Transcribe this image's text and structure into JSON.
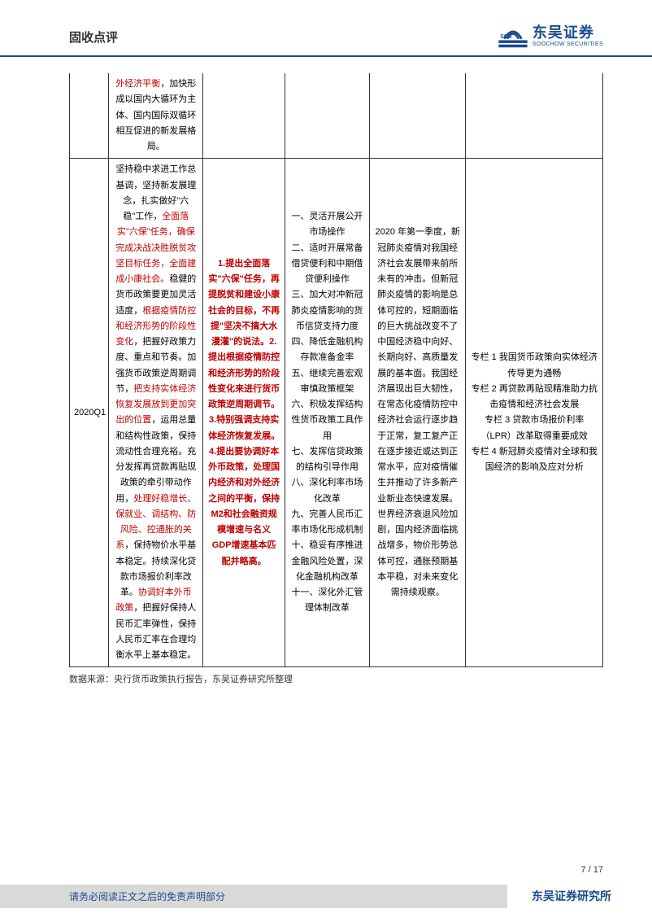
{
  "header": {
    "title": "固收点评",
    "logo_cn": "东吴证券",
    "logo_en": "SOOCHOW SECURITIES",
    "logo_tag": "SCS"
  },
  "table": {
    "row0": {
      "c1_red": "外经济平衡",
      "c1_rest": "，加快形成以国内大循环为主体、国内国际双循环相互促进的新发展格局。"
    },
    "row1": {
      "period": "2020Q1",
      "c1": {
        "parts": [
          {
            "t": "坚持稳中求进工作总基调，坚持新发展理念，扎实做好\"六稳\"工作，",
            "c": ""
          },
          {
            "t": "全面落实\"六保\"任务，确保完成决战决胜脱贫攻坚目标任务，全面建成小康社会。",
            "c": "red"
          },
          {
            "t": "稳健的货币政策要更加灵活适度，",
            "c": ""
          },
          {
            "t": "根据疫情防控和经济形势的阶段性变化",
            "c": "red"
          },
          {
            "t": "，把握好政策力度、重点和节奏。加强货币政策逆周期调节，",
            "c": ""
          },
          {
            "t": "把支持实体经济恢复发展放到更加突出的位置",
            "c": "red"
          },
          {
            "t": "，运用总量和结构性政策，保持流动性合理充裕。充分发挥再贷款再贴现政策的牵引带动作用，",
            "c": ""
          },
          {
            "t": "处理好稳增长、保就业、调结构、防风险、控通胀的关系",
            "c": "red"
          },
          {
            "t": "，保持物价水平基本稳定。持续深化贷款市场报价利率改革。",
            "c": ""
          },
          {
            "t": "协调好本外币",
            "c": "red"
          },
          {
            "t": "\n",
            "c": ""
          },
          {
            "t": "政策",
            "c": "red"
          },
          {
            "t": "，把握好保持人民币汇率弹性，保持人民币汇率在合理均衡水平上基本稳定。",
            "c": ""
          }
        ]
      },
      "c2": "1.提出全面落实\"六保\"任务，再提脱贫和建设小康社会的目标，不再提\"坚决不搞大水漫灌\"的说法。2.提出根据疫情防控和经济形势的阶段性变化来进行货币政策逆周期调节。3.特别强调支持实体经济恢复发展。4.提出要协调好本外币政策，处理国内经济和对外经济之间的平衡，保持M2和社会融资规模增速与名义 GDP增速基本匹配并略高。",
      "c3": "一、灵活开展公开市场操作\n二、适时开展常备借贷便利和中期借贷便利操作\n三、加大对冲新冠肺炎疫情影响的货币信贷支持力度\n四、降低金融机构存款准备金率\n五、继续完善宏观审慎政策框架\n六、积极发挥结构性货币政策工具作用\n七、发挥信贷政策的结构引导作用\n八、深化利率市场化改革\n九、完善人民币汇率市场化形成机制\n十、稳妥有序推进金融风险处置，深化金融机构改革\n十一、深化外汇管理体制改革",
      "c4": "2020 年第一季度，新冠肺炎疫情对我国经济社会发展带来前所未有的冲击。但新冠肺炎疫情的影响是总体可控的，短期面临的巨大挑战改变不了中国经济稳中向好、长期向好、高质量发展的基本面。我国经济展现出巨大韧性，在常态化疫情防控中经济社会运行逐步趋于正常，复工复产正在逐步接近或达到正常水平，应对疫情催生并推动了许多新产业新业态快速发展。世界经济衰退风险加剧，国内经济面临挑战增多，物价形势总体可控，通胀预期基本平稳，对未来变化需持续观察。",
      "c5": "专栏 1 我国货币政策向实体经济传导更为通畅\n专栏 2 再贷款再贴现精准助力抗击疫情和经济社会发展\n专栏 3 贷款市场报价利率（LPR）改革取得重要成效\n专栏 4 新冠肺炎疫情对全球和我国经济的影响及应对分析"
    }
  },
  "source": "数据来源：央行货币政策执行报告，东吴证券研究所整理",
  "page_num": "7 / 17",
  "footer": {
    "left": "请务必阅读正文之后的免责声明部分",
    "right": "东吴证券研究所"
  },
  "colors": {
    "brand": "#1a4b8c",
    "red": "#c00000",
    "footer_bg": "#d9d9d9"
  }
}
